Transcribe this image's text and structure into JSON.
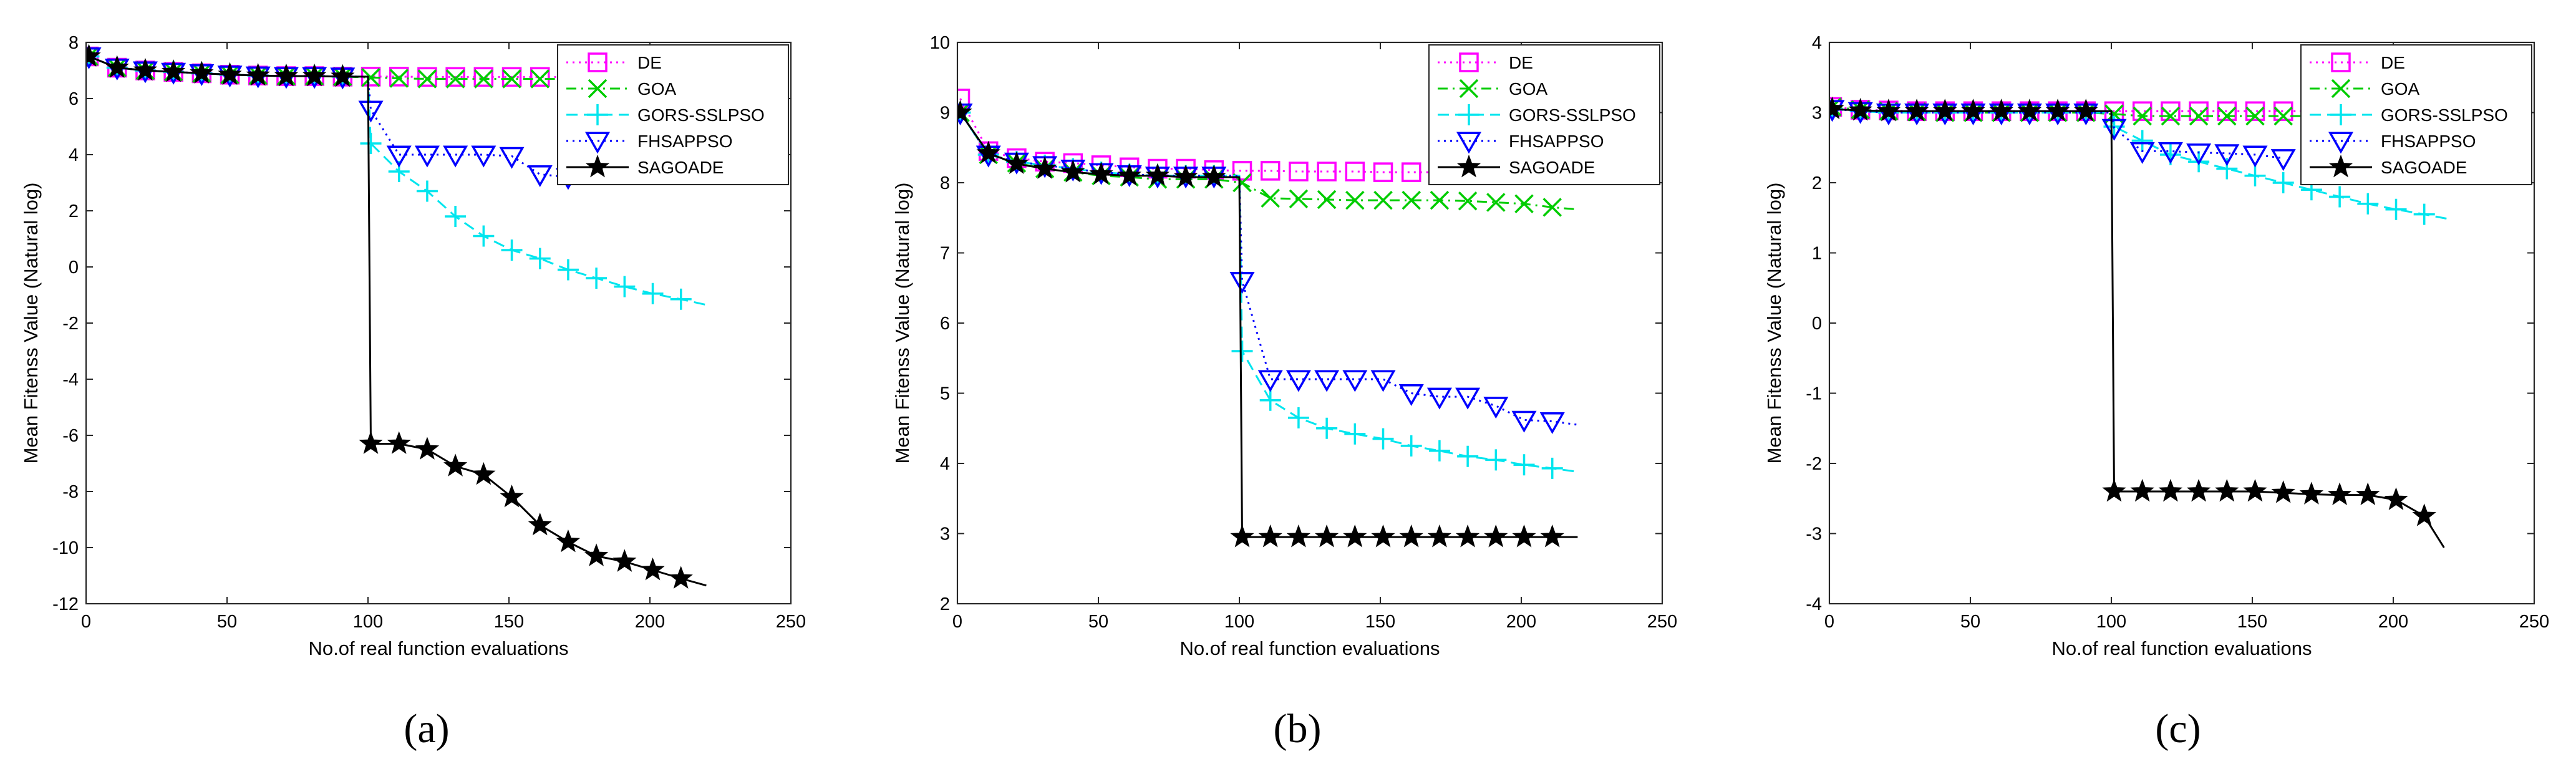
{
  "figure": {
    "colors": {
      "DE": "#ff00ff",
      "GOA": "#00cc00",
      "GORS-SSLPSO": "#00e5ee",
      "FHSAPPSO": "#0000ff",
      "SAGOADE": "#000000"
    }
  },
  "chart_data": [
    {
      "type": "line",
      "panel_label": "(a)",
      "xlabel": "No.of real function evaluations",
      "ylabel": "Mean Fitenss Value (Natural log)",
      "xlim": [
        0,
        250
      ],
      "ylim": [
        -12,
        8
      ],
      "xticks": [
        0,
        50,
        100,
        150,
        200,
        250
      ],
      "yticks": [
        -12,
        -10,
        -8,
        -6,
        -4,
        -2,
        0,
        2,
        4,
        6,
        8
      ],
      "legend_position": "top-right",
      "series": [
        {
          "name": "DE",
          "marker": "square",
          "style": "dotted",
          "x": [
            1,
            11,
            21,
            31,
            41,
            51,
            61,
            71,
            81,
            91,
            101,
            111,
            121,
            131,
            141,
            151,
            161,
            171,
            181,
            191,
            201,
            211,
            220
          ],
          "y": [
            7.5,
            7.1,
            7.0,
            6.95,
            6.9,
            6.85,
            6.82,
            6.8,
            6.8,
            6.78,
            6.78,
            6.78,
            6.77,
            6.77,
            6.77,
            6.77,
            6.77,
            6.77,
            6.76,
            6.76,
            6.76,
            6.76,
            6.76
          ]
        },
        {
          "name": "GOA",
          "marker": "x",
          "style": "dashdot",
          "x": [
            1,
            11,
            21,
            31,
            41,
            51,
            61,
            71,
            81,
            91,
            101,
            111,
            121,
            131,
            141,
            151,
            161,
            171,
            181,
            191,
            201,
            211,
            220
          ],
          "y": [
            7.5,
            7.1,
            7.0,
            6.95,
            6.9,
            6.85,
            6.82,
            6.8,
            6.8,
            6.78,
            6.75,
            6.72,
            6.7,
            6.7,
            6.7,
            6.7,
            6.7,
            6.7,
            6.7,
            6.7,
            6.7,
            6.7,
            6.7
          ]
        },
        {
          "name": "GORS-SSLPSO",
          "marker": "plus",
          "style": "dashed",
          "x": [
            1,
            11,
            21,
            31,
            41,
            51,
            61,
            71,
            81,
            91,
            100,
            101,
            111,
            121,
            131,
            141,
            151,
            161,
            171,
            181,
            191,
            201,
            211,
            220
          ],
          "y": [
            7.5,
            7.1,
            7.0,
            6.95,
            6.9,
            6.85,
            6.82,
            6.8,
            6.8,
            6.78,
            6.78,
            4.4,
            3.4,
            2.7,
            1.8,
            1.1,
            0.6,
            0.3,
            -0.1,
            -0.4,
            -0.7,
            -0.95,
            -1.15,
            -1.35
          ]
        },
        {
          "name": "FHSAPPSO",
          "marker": "triangle-down",
          "style": "dotted",
          "x": [
            1,
            11,
            21,
            31,
            41,
            51,
            61,
            71,
            81,
            91,
            100,
            101,
            111,
            121,
            131,
            141,
            151,
            161,
            171
          ],
          "y": [
            7.5,
            7.1,
            7.0,
            6.95,
            6.9,
            6.85,
            6.82,
            6.8,
            6.8,
            6.78,
            6.78,
            5.6,
            4.0,
            4.0,
            4.0,
            4.0,
            3.95,
            3.3,
            3.2
          ]
        },
        {
          "name": "SAGOADE",
          "marker": "star",
          "style": "solid",
          "x": [
            1,
            11,
            21,
            31,
            41,
            51,
            61,
            71,
            81,
            91,
            100,
            101,
            111,
            121,
            131,
            141,
            151,
            161,
            171,
            181,
            191,
            201,
            211,
            220
          ],
          "y": [
            7.5,
            7.1,
            7.0,
            6.95,
            6.9,
            6.85,
            6.82,
            6.8,
            6.8,
            6.78,
            6.78,
            -6.3,
            -6.3,
            -6.5,
            -7.1,
            -7.4,
            -8.2,
            -9.2,
            -9.8,
            -10.3,
            -10.5,
            -10.8,
            -11.1,
            -11.35
          ]
        }
      ]
    },
    {
      "type": "line",
      "panel_label": "(b)",
      "xlabel": "No.of real function evaluations",
      "ylabel": "Mean Fitenss Value (Natural log)",
      "xlim": [
        0,
        250
      ],
      "ylim": [
        2,
        10
      ],
      "xticks": [
        0,
        50,
        100,
        150,
        200,
        250
      ],
      "yticks": [
        2,
        3,
        4,
        5,
        6,
        7,
        8,
        9,
        10
      ],
      "legend_position": "top-right",
      "series": [
        {
          "name": "DE",
          "marker": "square",
          "style": "dotted",
          "x": [
            1,
            11,
            21,
            31,
            41,
            51,
            61,
            71,
            81,
            91,
            101,
            111,
            121,
            131,
            141,
            151,
            161,
            171,
            181,
            191,
            201,
            211,
            220
          ],
          "y": [
            9.2,
            8.45,
            8.35,
            8.3,
            8.28,
            8.25,
            8.22,
            8.2,
            8.2,
            8.18,
            8.17,
            8.17,
            8.16,
            8.16,
            8.16,
            8.15,
            8.15,
            8.15,
            8.15,
            8.15,
            8.15,
            8.15,
            8.15
          ]
        },
        {
          "name": "GOA",
          "marker": "x",
          "style": "dashdot",
          "x": [
            1,
            11,
            21,
            31,
            41,
            51,
            61,
            71,
            81,
            91,
            101,
            111,
            121,
            131,
            141,
            151,
            161,
            171,
            181,
            191,
            201,
            211,
            220
          ],
          "y": [
            9.0,
            8.4,
            8.28,
            8.2,
            8.15,
            8.1,
            8.08,
            8.05,
            8.05,
            8.05,
            8.0,
            7.78,
            7.77,
            7.76,
            7.75,
            7.75,
            7.75,
            7.75,
            7.74,
            7.72,
            7.7,
            7.65,
            7.62
          ]
        },
        {
          "name": "GORS-SSLPSO",
          "marker": "plus",
          "style": "dashed",
          "x": [
            1,
            11,
            21,
            31,
            41,
            51,
            61,
            71,
            81,
            91,
            100,
            101,
            111,
            121,
            131,
            141,
            151,
            161,
            171,
            181,
            191,
            201,
            211,
            220
          ],
          "y": [
            9.0,
            8.4,
            8.3,
            8.25,
            8.2,
            8.15,
            8.12,
            8.1,
            8.1,
            8.1,
            8.1,
            5.6,
            4.9,
            4.65,
            4.5,
            4.42,
            4.35,
            4.25,
            4.18,
            4.1,
            4.05,
            3.98,
            3.93,
            3.88
          ]
        },
        {
          "name": "FHSAPPSO",
          "marker": "triangle-down",
          "style": "dotted",
          "x": [
            1,
            11,
            21,
            31,
            41,
            51,
            61,
            71,
            81,
            91,
            100,
            101,
            111,
            121,
            131,
            141,
            151,
            161,
            171,
            181,
            191,
            201,
            211,
            220
          ],
          "y": [
            9.0,
            8.4,
            8.3,
            8.25,
            8.2,
            8.15,
            8.12,
            8.1,
            8.1,
            8.1,
            8.1,
            6.6,
            5.2,
            5.2,
            5.2,
            5.2,
            5.2,
            5.0,
            4.95,
            4.95,
            4.82,
            4.62,
            4.6,
            4.55
          ]
        },
        {
          "name": "SAGOADE",
          "marker": "star",
          "style": "solid",
          "x": [
            1,
            11,
            21,
            31,
            41,
            51,
            61,
            71,
            81,
            91,
            100,
            101,
            111,
            121,
            131,
            141,
            151,
            161,
            171,
            181,
            191,
            201,
            211,
            220
          ],
          "y": [
            9.0,
            8.42,
            8.27,
            8.2,
            8.15,
            8.12,
            8.1,
            8.1,
            8.08,
            8.08,
            8.08,
            2.95,
            2.95,
            2.95,
            2.95,
            2.95,
            2.95,
            2.95,
            2.95,
            2.95,
            2.95,
            2.95,
            2.95,
            2.95
          ]
        }
      ]
    },
    {
      "type": "line",
      "panel_label": "(c)",
      "xlabel": "No.of real function evaluations",
      "ylabel": "Mean Fitenss Value (Natural log)",
      "xlim": [
        0,
        250
      ],
      "ylim": [
        -4,
        4
      ],
      "xticks": [
        0,
        50,
        100,
        150,
        200,
        250
      ],
      "yticks": [
        -4,
        -3,
        -2,
        -1,
        0,
        1,
        2,
        3,
        4
      ],
      "legend_position": "top-right",
      "series": [
        {
          "name": "DE",
          "marker": "square",
          "style": "dotted",
          "x": [
            1,
            11,
            21,
            31,
            41,
            51,
            61,
            71,
            81,
            91,
            101,
            111,
            121,
            131,
            141,
            151,
            161,
            171,
            181,
            191,
            201,
            211,
            220
          ],
          "y": [
            3.08,
            3.04,
            3.03,
            3.02,
            3.02,
            3.02,
            3.02,
            3.02,
            3.02,
            3.02,
            3.02,
            3.02,
            3.02,
            3.02,
            3.02,
            3.02,
            3.02,
            3.02,
            3.02,
            3.02,
            3.02,
            3.02,
            3.02
          ]
        },
        {
          "name": "GOA",
          "marker": "x",
          "style": "dashdot",
          "x": [
            1,
            11,
            21,
            31,
            41,
            51,
            61,
            71,
            81,
            91,
            101,
            111,
            121,
            131,
            141,
            151,
            161,
            171,
            181,
            191,
            201,
            211,
            220
          ],
          "y": [
            3.08,
            3.04,
            3.02,
            3.01,
            3.0,
            3.0,
            3.0,
            3.0,
            3.0,
            3.0,
            2.98,
            2.95,
            2.95,
            2.95,
            2.95,
            2.95,
            2.95,
            2.95,
            2.95,
            2.95,
            2.95,
            2.95,
            2.95
          ]
        },
        {
          "name": "GORS-SSLPSO",
          "marker": "plus",
          "style": "dashed",
          "x": [
            1,
            11,
            21,
            31,
            41,
            51,
            61,
            71,
            81,
            91,
            100,
            101,
            111,
            121,
            131,
            141,
            151,
            161,
            171,
            181,
            191,
            201,
            211,
            220
          ],
          "y": [
            3.05,
            3.02,
            3.0,
            3.0,
            3.0,
            3.0,
            3.0,
            3.0,
            3.0,
            3.0,
            3.0,
            2.8,
            2.6,
            2.4,
            2.3,
            2.2,
            2.1,
            2.0,
            1.9,
            1.8,
            1.7,
            1.62,
            1.55,
            1.48
          ]
        },
        {
          "name": "FHSAPPSO",
          "marker": "triangle-down",
          "style": "dotted",
          "x": [
            1,
            11,
            21,
            31,
            41,
            51,
            61,
            71,
            81,
            91,
            100,
            101,
            111,
            121,
            131,
            141,
            151,
            161
          ],
          "y": [
            3.05,
            3.02,
            3.0,
            3.0,
            3.0,
            3.0,
            3.0,
            3.0,
            3.0,
            3.0,
            3.0,
            2.78,
            2.45,
            2.45,
            2.43,
            2.42,
            2.4,
            2.35
          ]
        },
        {
          "name": "SAGOADE",
          "marker": "star",
          "style": "solid",
          "x": [
            1,
            11,
            21,
            31,
            41,
            51,
            61,
            71,
            81,
            91,
            100,
            101,
            111,
            121,
            131,
            141,
            151,
            161,
            171,
            181,
            191,
            201,
            211,
            218
          ],
          "y": [
            3.05,
            3.03,
            3.02,
            3.02,
            3.02,
            3.02,
            3.02,
            3.02,
            3.02,
            3.02,
            3.02,
            -2.4,
            -2.4,
            -2.4,
            -2.4,
            -2.4,
            -2.4,
            -2.42,
            -2.44,
            -2.45,
            -2.45,
            -2.52,
            -2.75,
            -3.2
          ]
        }
      ]
    }
  ]
}
